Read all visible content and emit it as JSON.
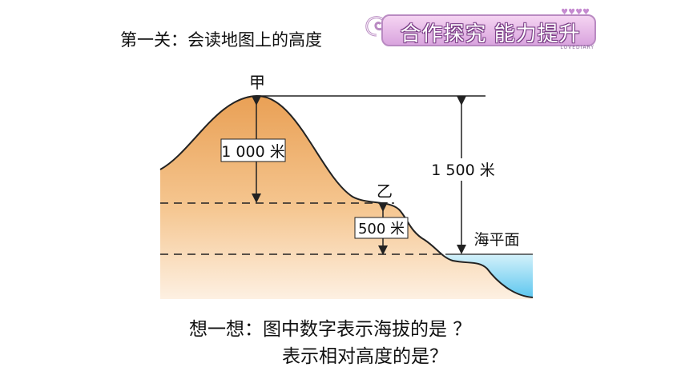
{
  "header": {
    "title": "第一关：会读地图上的高度",
    "banner_text": "合作探究  能力提升",
    "banner_sub": "LOVEDIARY",
    "banner_hearts": "♥♥♥♥"
  },
  "diagram": {
    "peak_label": "甲",
    "saddle_label": "乙",
    "relative_height_label": "1 000 米",
    "absolute_height_label": "1 500 米",
    "lower_relative_label": "500 米",
    "sea_level_label": "海平面",
    "colors": {
      "mountain_top": "#e9a055",
      "mountain_bottom": "#fbe6cf",
      "sea_top": "#cdeff8",
      "sea_bottom": "#5ec7ef",
      "outline": "#222222"
    }
  },
  "question": {
    "line1": "想一想：图中数字表示海拔的是 ？",
    "line2": "表示相对高度的是？"
  }
}
